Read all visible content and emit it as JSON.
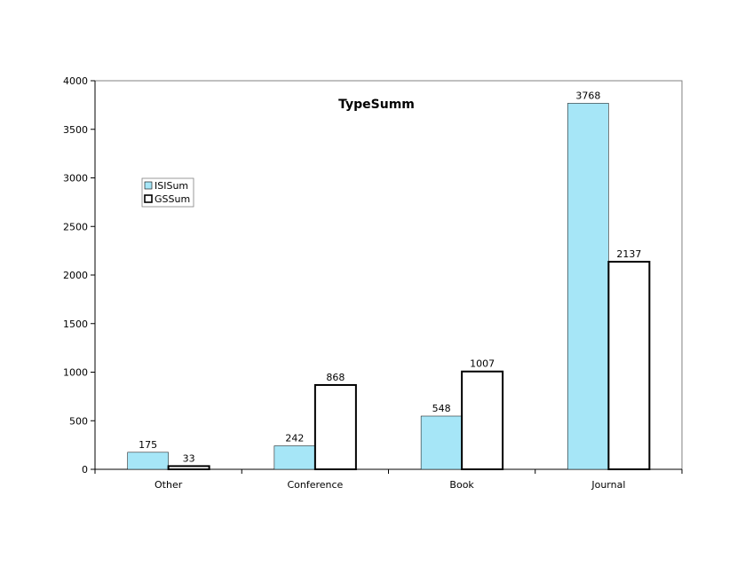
{
  "chart_data": {
    "type": "bar",
    "title": "TypeSumm",
    "xlabel": "",
    "ylabel": "",
    "categories": [
      "Other",
      "Conference",
      "Book",
      "Journal"
    ],
    "series": [
      {
        "name": "ISISum",
        "values": [
          175,
          242,
          548,
          3768
        ],
        "color": "#a6e6f7"
      },
      {
        "name": "GSSum",
        "values": [
          33,
          868,
          1007,
          2137
        ],
        "color": "#ffffff"
      }
    ],
    "ylim": [
      0,
      4000
    ],
    "yticks": [
      0,
      500,
      1000,
      1500,
      2000,
      2500,
      3000,
      3500,
      4000
    ],
    "grid": false,
    "legend_position": "left",
    "data_labels": true
  }
}
